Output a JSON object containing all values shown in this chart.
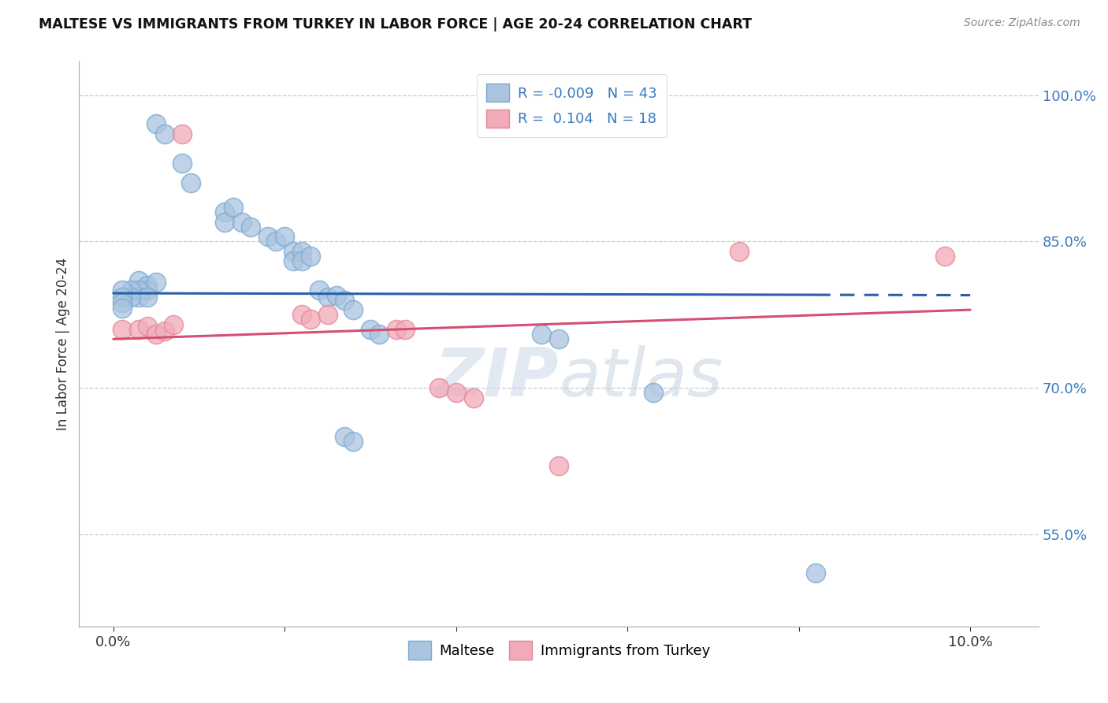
{
  "title": "MALTESE VS IMMIGRANTS FROM TURKEY IN LABOR FORCE | AGE 20-24 CORRELATION CHART",
  "source": "Source: ZipAtlas.com",
  "ylabel": "In Labor Force | Age 20-24",
  "y_ticks": [
    0.55,
    0.7,
    0.85,
    1.0
  ],
  "y_tick_labels": [
    "55.0%",
    "70.0%",
    "85.0%",
    "100.0%"
  ],
  "blue_R": "-0.009",
  "blue_N": "43",
  "pink_R": "0.104",
  "pink_N": "18",
  "blue_color": "#aac4df",
  "pink_color": "#f2aab8",
  "blue_line_color": "#2b5faa",
  "pink_line_color": "#d45070",
  "blue_line_style_end": 0.082,
  "legend_label_blue": "Maltese",
  "legend_label_pink": "Immigrants from Turkey",
  "blue_points": [
    [
      0.005,
      0.971
    ],
    [
      0.006,
      0.96
    ],
    [
      0.008,
      0.93
    ],
    [
      0.009,
      0.91
    ],
    [
      0.013,
      0.88
    ],
    [
      0.013,
      0.87
    ],
    [
      0.014,
      0.885
    ],
    [
      0.015,
      0.87
    ],
    [
      0.016,
      0.865
    ],
    [
      0.018,
      0.855
    ],
    [
      0.019,
      0.85
    ],
    [
      0.02,
      0.855
    ],
    [
      0.021,
      0.84
    ],
    [
      0.021,
      0.83
    ],
    [
      0.022,
      0.84
    ],
    [
      0.022,
      0.83
    ],
    [
      0.023,
      0.835
    ],
    [
      0.003,
      0.81
    ],
    [
      0.004,
      0.805
    ],
    [
      0.004,
      0.8
    ],
    [
      0.005,
      0.808
    ],
    [
      0.003,
      0.8
    ],
    [
      0.003,
      0.793
    ],
    [
      0.004,
      0.793
    ],
    [
      0.002,
      0.8
    ],
    [
      0.002,
      0.793
    ],
    [
      0.001,
      0.8
    ],
    [
      0.001,
      0.793
    ],
    [
      0.001,
      0.787
    ],
    [
      0.001,
      0.782
    ],
    [
      0.024,
      0.8
    ],
    [
      0.025,
      0.793
    ],
    [
      0.026,
      0.795
    ],
    [
      0.027,
      0.79
    ],
    [
      0.028,
      0.78
    ],
    [
      0.03,
      0.76
    ],
    [
      0.031,
      0.755
    ],
    [
      0.027,
      0.65
    ],
    [
      0.028,
      0.645
    ],
    [
      0.05,
      0.755
    ],
    [
      0.052,
      0.75
    ],
    [
      0.063,
      0.695
    ],
    [
      0.082,
      0.51
    ]
  ],
  "pink_points": [
    [
      0.001,
      0.76
    ],
    [
      0.003,
      0.76
    ],
    [
      0.004,
      0.763
    ],
    [
      0.005,
      0.755
    ],
    [
      0.006,
      0.758
    ],
    [
      0.007,
      0.765
    ],
    [
      0.008,
      0.96
    ],
    [
      0.022,
      0.775
    ],
    [
      0.023,
      0.77
    ],
    [
      0.025,
      0.775
    ],
    [
      0.033,
      0.76
    ],
    [
      0.034,
      0.76
    ],
    [
      0.038,
      0.7
    ],
    [
      0.04,
      0.695
    ],
    [
      0.042,
      0.69
    ],
    [
      0.052,
      0.62
    ],
    [
      0.073,
      0.84
    ],
    [
      0.097,
      0.835
    ]
  ],
  "blue_trend": [
    0.0,
    0.1,
    0.797,
    0.795
  ],
  "pink_trend": [
    0.0,
    0.1,
    0.75,
    0.78
  ],
  "ylim": [
    0.455,
    1.035
  ],
  "xlim": [
    -0.004,
    0.108
  ],
  "x_ticks": [
    0.0,
    0.1
  ],
  "x_tick_labels": [
    "0.0%",
    "10.0%"
  ]
}
